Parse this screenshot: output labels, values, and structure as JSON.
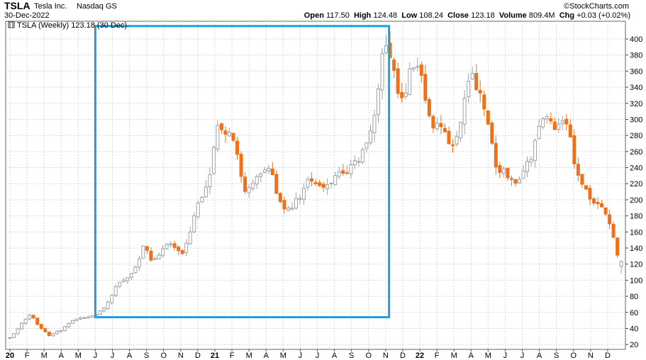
{
  "header": {
    "ticker": "TSLA",
    "name": "Tesla Inc.",
    "exchange": "Nasdaq GS",
    "date": "30-Dec-2022",
    "open_label": "Open",
    "open": "117.50",
    "high_label": "High",
    "high": "124.48",
    "low_label": "Low",
    "low": "108.24",
    "close_label": "Close",
    "close": "123.18",
    "volume_label": "Volume",
    "volume": "809.4M",
    "chg_label": "Chg",
    "chg": "+0.03 (+0.02%)",
    "watermark": "©StockCharts.com"
  },
  "chart_data": {
    "type": "candlestick",
    "legend": "TSLA (Weekly) 123.18 (30 Dec)",
    "y_ticks": [
      20,
      40,
      60,
      80,
      100,
      120,
      140,
      160,
      180,
      200,
      220,
      240,
      260,
      280,
      300,
      320,
      340,
      360,
      380,
      400
    ],
    "ylim": [
      14,
      422
    ],
    "x_ticks": [
      {
        "t": 0,
        "label": "20"
      },
      {
        "t": 1,
        "label": "F"
      },
      {
        "t": 2,
        "label": "M"
      },
      {
        "t": 3,
        "label": "A"
      },
      {
        "t": 4,
        "label": "M"
      },
      {
        "t": 5,
        "label": "J"
      },
      {
        "t": 6,
        "label": "J"
      },
      {
        "t": 7,
        "label": "A"
      },
      {
        "t": 8,
        "label": "S"
      },
      {
        "t": 9,
        "label": "O"
      },
      {
        "t": 10,
        "label": "N"
      },
      {
        "t": 11,
        "label": "D"
      },
      {
        "t": 12,
        "label": "21"
      },
      {
        "t": 13,
        "label": "F"
      },
      {
        "t": 14,
        "label": "M"
      },
      {
        "t": 15,
        "label": "A"
      },
      {
        "t": 16,
        "label": "M"
      },
      {
        "t": 17,
        "label": "J"
      },
      {
        "t": 18,
        "label": "J"
      },
      {
        "t": 19,
        "label": "A"
      },
      {
        "t": 20,
        "label": "S"
      },
      {
        "t": 21,
        "label": "O"
      },
      {
        "t": 22,
        "label": "N"
      },
      {
        "t": 23,
        "label": "D"
      },
      {
        "t": 24,
        "label": "22"
      },
      {
        "t": 25,
        "label": "F"
      },
      {
        "t": 26,
        "label": "M"
      },
      {
        "t": 27,
        "label": "A"
      },
      {
        "t": 28,
        "label": "M"
      },
      {
        "t": 29,
        "label": "J"
      },
      {
        "t": 30,
        "label": "J"
      },
      {
        "t": 31,
        "label": "A"
      },
      {
        "t": 32,
        "label": "S"
      },
      {
        "t": 33,
        "label": "O"
      },
      {
        "t": 34,
        "label": "N"
      },
      {
        "t": 35,
        "label": "D"
      }
    ],
    "highlight": {
      "start": "2020-06",
      "end": "2021-11",
      "y_low": 54,
      "y_high": 416,
      "color": "#1aa0dc"
    },
    "colors": {
      "up": "#9aa3a8",
      "down": "#f07018",
      "grid": "#d8d8d8"
    },
    "series_keypoints": [
      {
        "t": 0.0,
        "v": 28
      },
      {
        "t": 0.8,
        "v": 50
      },
      {
        "t": 1.2,
        "v": 58
      },
      {
        "t": 1.6,
        "v": 45
      },
      {
        "t": 2.3,
        "v": 32
      },
      {
        "t": 3.0,
        "v": 38
      },
      {
        "t": 3.6,
        "v": 50
      },
      {
        "t": 4.5,
        "v": 55
      },
      {
        "t": 5.0,
        "v": 57
      },
      {
        "t": 5.6,
        "v": 65
      },
      {
        "t": 6.2,
        "v": 92
      },
      {
        "t": 6.6,
        "v": 100
      },
      {
        "t": 7.2,
        "v": 110
      },
      {
        "t": 7.6,
        "v": 130
      },
      {
        "t": 7.9,
        "v": 145
      },
      {
        "t": 8.3,
        "v": 120
      },
      {
        "t": 9.0,
        "v": 140
      },
      {
        "t": 9.5,
        "v": 145
      },
      {
        "t": 10.0,
        "v": 130
      },
      {
        "t": 10.4,
        "v": 150
      },
      {
        "t": 10.8,
        "v": 185
      },
      {
        "t": 11.3,
        "v": 210
      },
      {
        "t": 11.7,
        "v": 230
      },
      {
        "t": 12.0,
        "v": 270
      },
      {
        "t": 12.2,
        "v": 290
      },
      {
        "t": 12.6,
        "v": 275
      },
      {
        "t": 13.0,
        "v": 290
      },
      {
        "t": 13.4,
        "v": 240
      },
      {
        "t": 13.8,
        "v": 205
      },
      {
        "t": 14.3,
        "v": 220
      },
      {
        "t": 14.8,
        "v": 240
      },
      {
        "t": 15.3,
        "v": 235
      },
      {
        "t": 15.8,
        "v": 195
      },
      {
        "t": 16.4,
        "v": 190
      },
      {
        "t": 17.0,
        "v": 205
      },
      {
        "t": 17.5,
        "v": 225
      },
      {
        "t": 18.0,
        "v": 215
      },
      {
        "t": 18.5,
        "v": 215
      },
      {
        "t": 19.0,
        "v": 230
      },
      {
        "t": 19.6,
        "v": 235
      },
      {
        "t": 20.3,
        "v": 245
      },
      {
        "t": 20.8,
        "v": 265
      },
      {
        "t": 21.3,
        "v": 300
      },
      {
        "t": 21.6,
        "v": 345
      },
      {
        "t": 21.9,
        "v": 400
      },
      {
        "t": 22.2,
        "v": 385
      },
      {
        "t": 22.6,
        "v": 345
      },
      {
        "t": 23.0,
        "v": 320
      },
      {
        "t": 23.4,
        "v": 355
      },
      {
        "t": 23.8,
        "v": 380
      },
      {
        "t": 24.2,
        "v": 340
      },
      {
        "t": 24.6,
        "v": 300
      },
      {
        "t": 25.0,
        "v": 290
      },
      {
        "t": 25.5,
        "v": 280
      },
      {
        "t": 26.0,
        "v": 265
      },
      {
        "t": 26.4,
        "v": 300
      },
      {
        "t": 26.9,
        "v": 360
      },
      {
        "t": 27.3,
        "v": 345
      },
      {
        "t": 27.6,
        "v": 330
      },
      {
        "t": 28.0,
        "v": 290
      },
      {
        "t": 28.5,
        "v": 240
      },
      {
        "t": 29.0,
        "v": 235
      },
      {
        "t": 29.5,
        "v": 220
      },
      {
        "t": 30.0,
        "v": 235
      },
      {
        "t": 30.5,
        "v": 250
      },
      {
        "t": 31.0,
        "v": 295
      },
      {
        "t": 31.5,
        "v": 300
      },
      {
        "t": 32.0,
        "v": 290
      },
      {
        "t": 32.6,
        "v": 300
      },
      {
        "t": 33.0,
        "v": 250
      },
      {
        "t": 33.5,
        "v": 220
      },
      {
        "t": 34.0,
        "v": 200
      },
      {
        "t": 34.5,
        "v": 190
      },
      {
        "t": 35.0,
        "v": 180
      },
      {
        "t": 35.3,
        "v": 160
      },
      {
        "t": 35.6,
        "v": 125
      },
      {
        "t": 35.8,
        "v": 123
      }
    ]
  }
}
